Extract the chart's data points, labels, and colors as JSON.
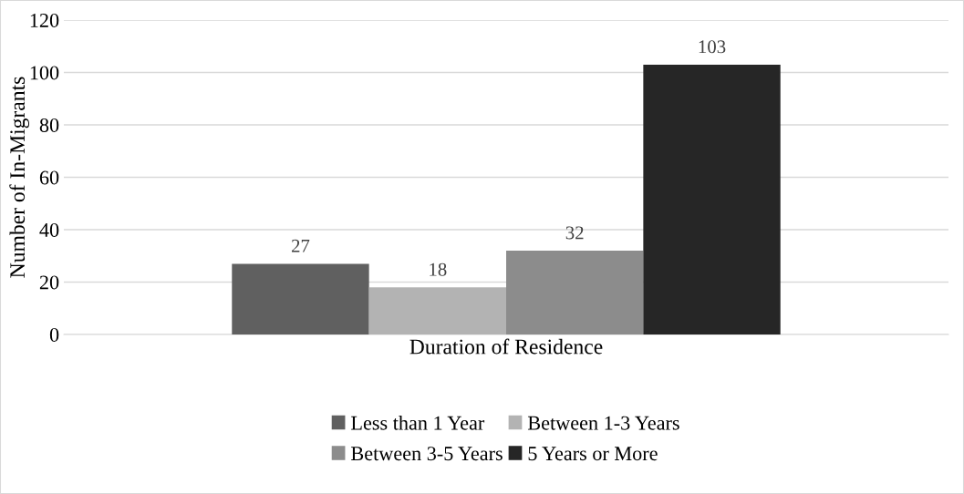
{
  "chart_data": {
    "type": "bar",
    "ylabel": "Number of In-Migrants",
    "categories": [
      "Duration of Residence"
    ],
    "series": [
      {
        "name": "Less than 1 Year",
        "color": "#606060",
        "values": [
          27
        ]
      },
      {
        "name": "Between 1-3 Years",
        "color": "#b3b3b3",
        "values": [
          18
        ]
      },
      {
        "name": "Between 3-5 Years",
        "color": "#8c8c8c",
        "values": [
          32
        ]
      },
      {
        "name": "5 Years or More",
        "color": "#262626",
        "values": [
          103
        ]
      }
    ],
    "ylim": [
      0,
      120
    ],
    "yticks": [
      0,
      20,
      40,
      60,
      80,
      100,
      120
    ],
    "grid": "y",
    "legend": "bottom",
    "data_labels": true
  }
}
